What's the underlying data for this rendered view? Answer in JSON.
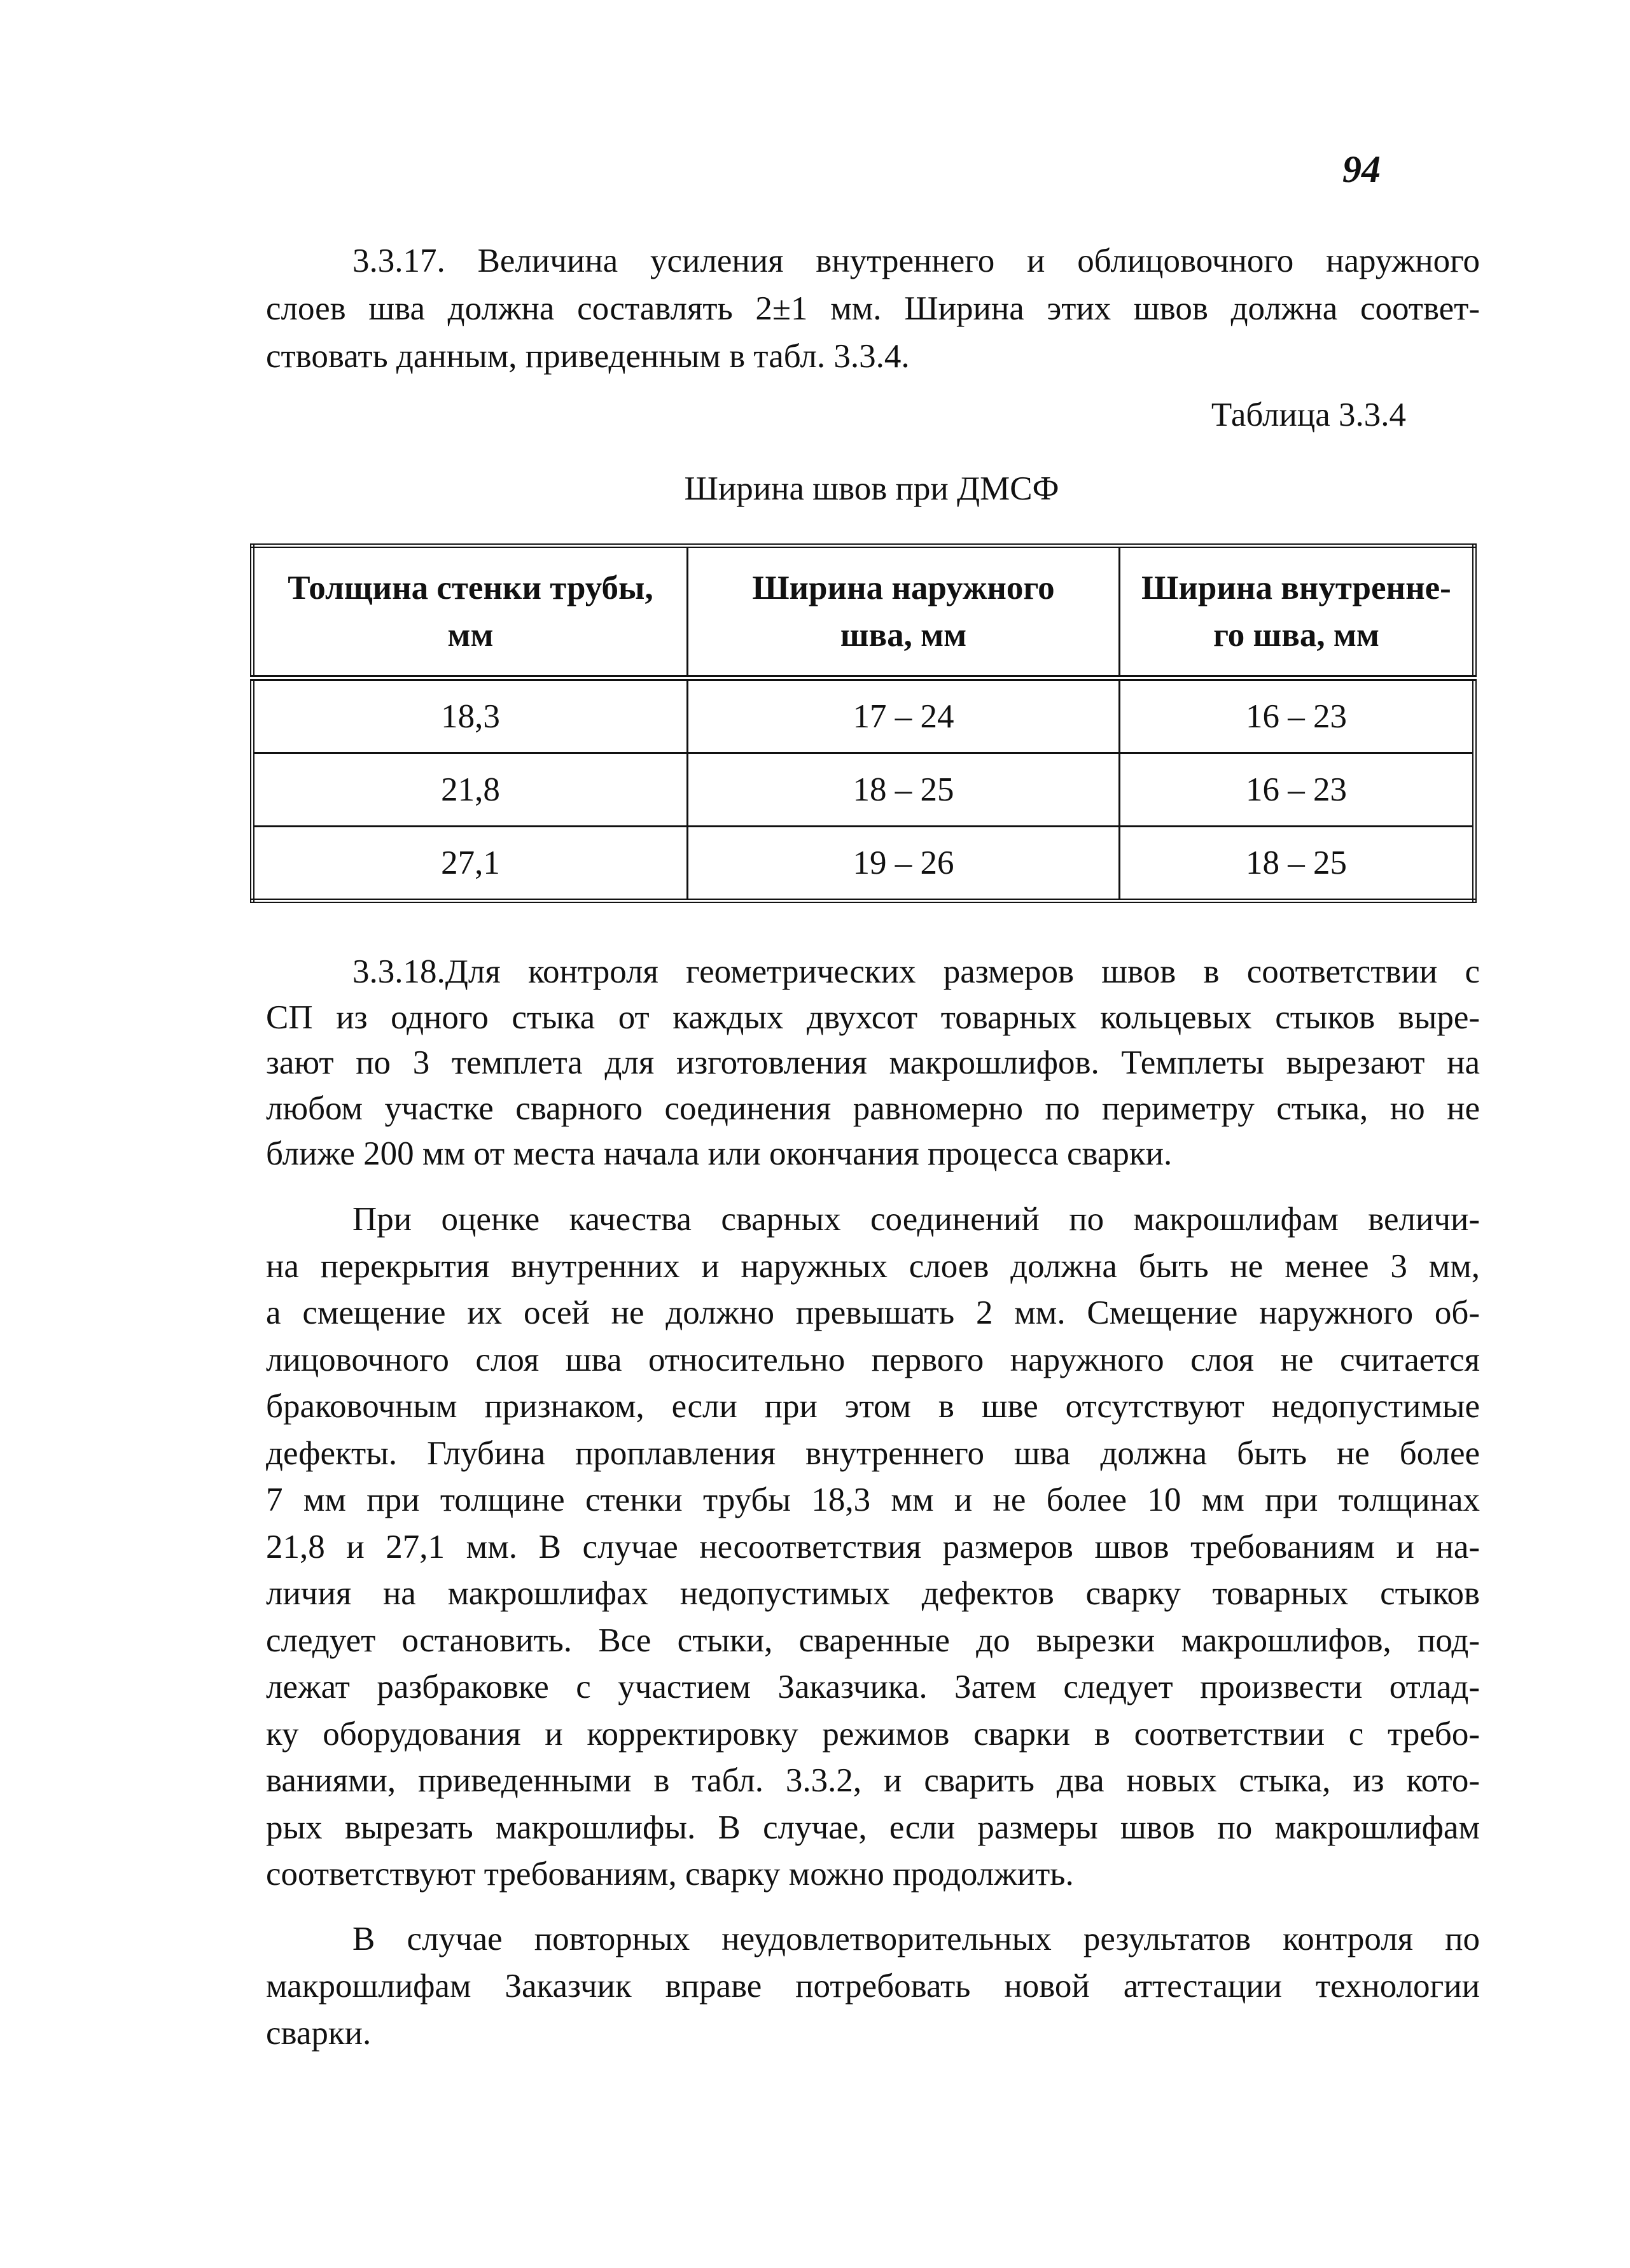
{
  "page_number": "94",
  "paragraph_1": [
    "3.3.17. Величина усиления внутреннего и облицовочного наружного",
    "слоев шва должна составлять 2±1 мм. Ширина этих швов должна соответ-",
    "ствовать данным, приведенным в табл. 3.3.4."
  ],
  "table_label": "Таблица 3.3.4",
  "table_caption": "Ширина швов при ДМСФ",
  "table": {
    "headers": [
      [
        "Толщина стенки трубы,",
        "мм"
      ],
      [
        "Ширина наружного",
        "шва, мм"
      ],
      [
        "Ширина внутренне-",
        "го шва, мм"
      ]
    ],
    "rows": [
      [
        "18,3",
        "17 – 24",
        "16 – 23"
      ],
      [
        "21,8",
        "18 – 25",
        "16 – 23"
      ],
      [
        "27,1",
        "19 – 26",
        "18 – 25"
      ]
    ]
  },
  "paragraph_2": [
    "3.3.18.Для контроля геометрических размеров швов в соответствии с",
    "СП из одного стыка от каждых двухсот товарных кольцевых стыков выре-",
    "зают по 3 темплета для изготовления макрошлифов. Темплеты вырезают на",
    "любом участке сварного соединения равномерно по периметру стыка, но не",
    "ближе 200 мм от места начала или окончания процесса сварки."
  ],
  "paragraph_3": [
    "При оценке качества сварных соединений по макрошлифам величи-",
    "на перекрытия внутренних и наружных слоев должна быть не менее 3 мм,",
    "а смещение их осей не должно превышать 2 мм. Смещение наружного об-",
    "лицовочного слоя шва относительно первого наружного слоя не считается",
    "браковочным признаком, если при этом в шве отсутствуют недопустимые",
    "дефекты. Глубина проплавления внутреннего шва должна быть не более",
    "7 мм при толщине стенки трубы 18,3 мм и не более 10 мм при толщинах",
    "21,8 и 27,1 мм. В случае несоответствия размеров швов требованиям и на-",
    "личия на макрошлифах недопустимых дефектов сварку товарных стыков",
    "следует остановить. Все стыки, сваренные до вырезки макрошлифов, под-",
    "лежат разбраковке с участием Заказчика. Затем следует произвести отлад-",
    "ку оборудования и корректировку режимов сварки в соответствии с требо-",
    "ваниями, приведенными в табл. 3.3.2, и сварить два новых стыка, из кото-",
    "рых вырезать макрошлифы. В случае, если размеры швов по макрошлифам",
    "соответствуют требованиям, сварку можно продолжить."
  ],
  "paragraph_4": [
    "В случае повторных неудовлетворительных результатов контроля по",
    "макрошлифам Заказчик вправе потребовать новой аттестации технологии",
    "сварки."
  ]
}
